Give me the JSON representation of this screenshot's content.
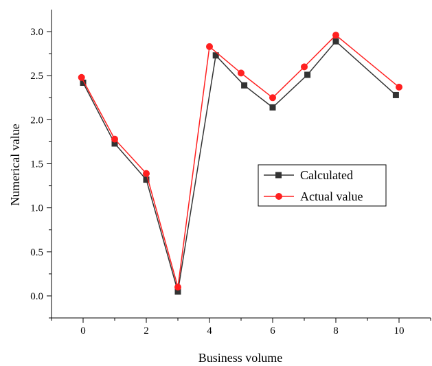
{
  "chart_data": {
    "type": "line",
    "xlabel": "Business volume",
    "ylabel": "Numerical value",
    "xlim": [
      -1,
      11
    ],
    "ylim": [
      -0.25,
      3.25
    ],
    "x_ticks": [
      0,
      2,
      4,
      6,
      8,
      10
    ],
    "x_tick_labels": [
      "0",
      "2",
      "4",
      "6",
      "8",
      "10"
    ],
    "y_ticks": [
      0.0,
      0.5,
      1.0,
      1.5,
      2.0,
      2.5,
      3.0
    ],
    "y_tick_labels": [
      "0.0",
      "0.5",
      "1.0",
      "1.5",
      "2.0",
      "2.5",
      "3.0"
    ],
    "grid": false,
    "legend_position": "center-right",
    "series": [
      {
        "name": "Calculated",
        "color": "#333333",
        "marker": "square",
        "x": [
          0,
          1,
          2,
          3,
          4.2,
          5.1,
          6,
          7.1,
          8,
          9.9
        ],
        "y": [
          2.42,
          1.73,
          1.32,
          0.05,
          2.73,
          2.39,
          2.14,
          2.51,
          2.89,
          2.28
        ]
      },
      {
        "name": "Actual value",
        "color": "#ff2020",
        "marker": "circle",
        "x": [
          -0.05,
          1,
          2,
          3,
          4,
          5,
          6,
          7,
          8,
          10
        ],
        "y": [
          2.48,
          1.78,
          1.39,
          0.1,
          2.83,
          2.53,
          2.25,
          2.6,
          2.96,
          2.37
        ]
      }
    ]
  }
}
